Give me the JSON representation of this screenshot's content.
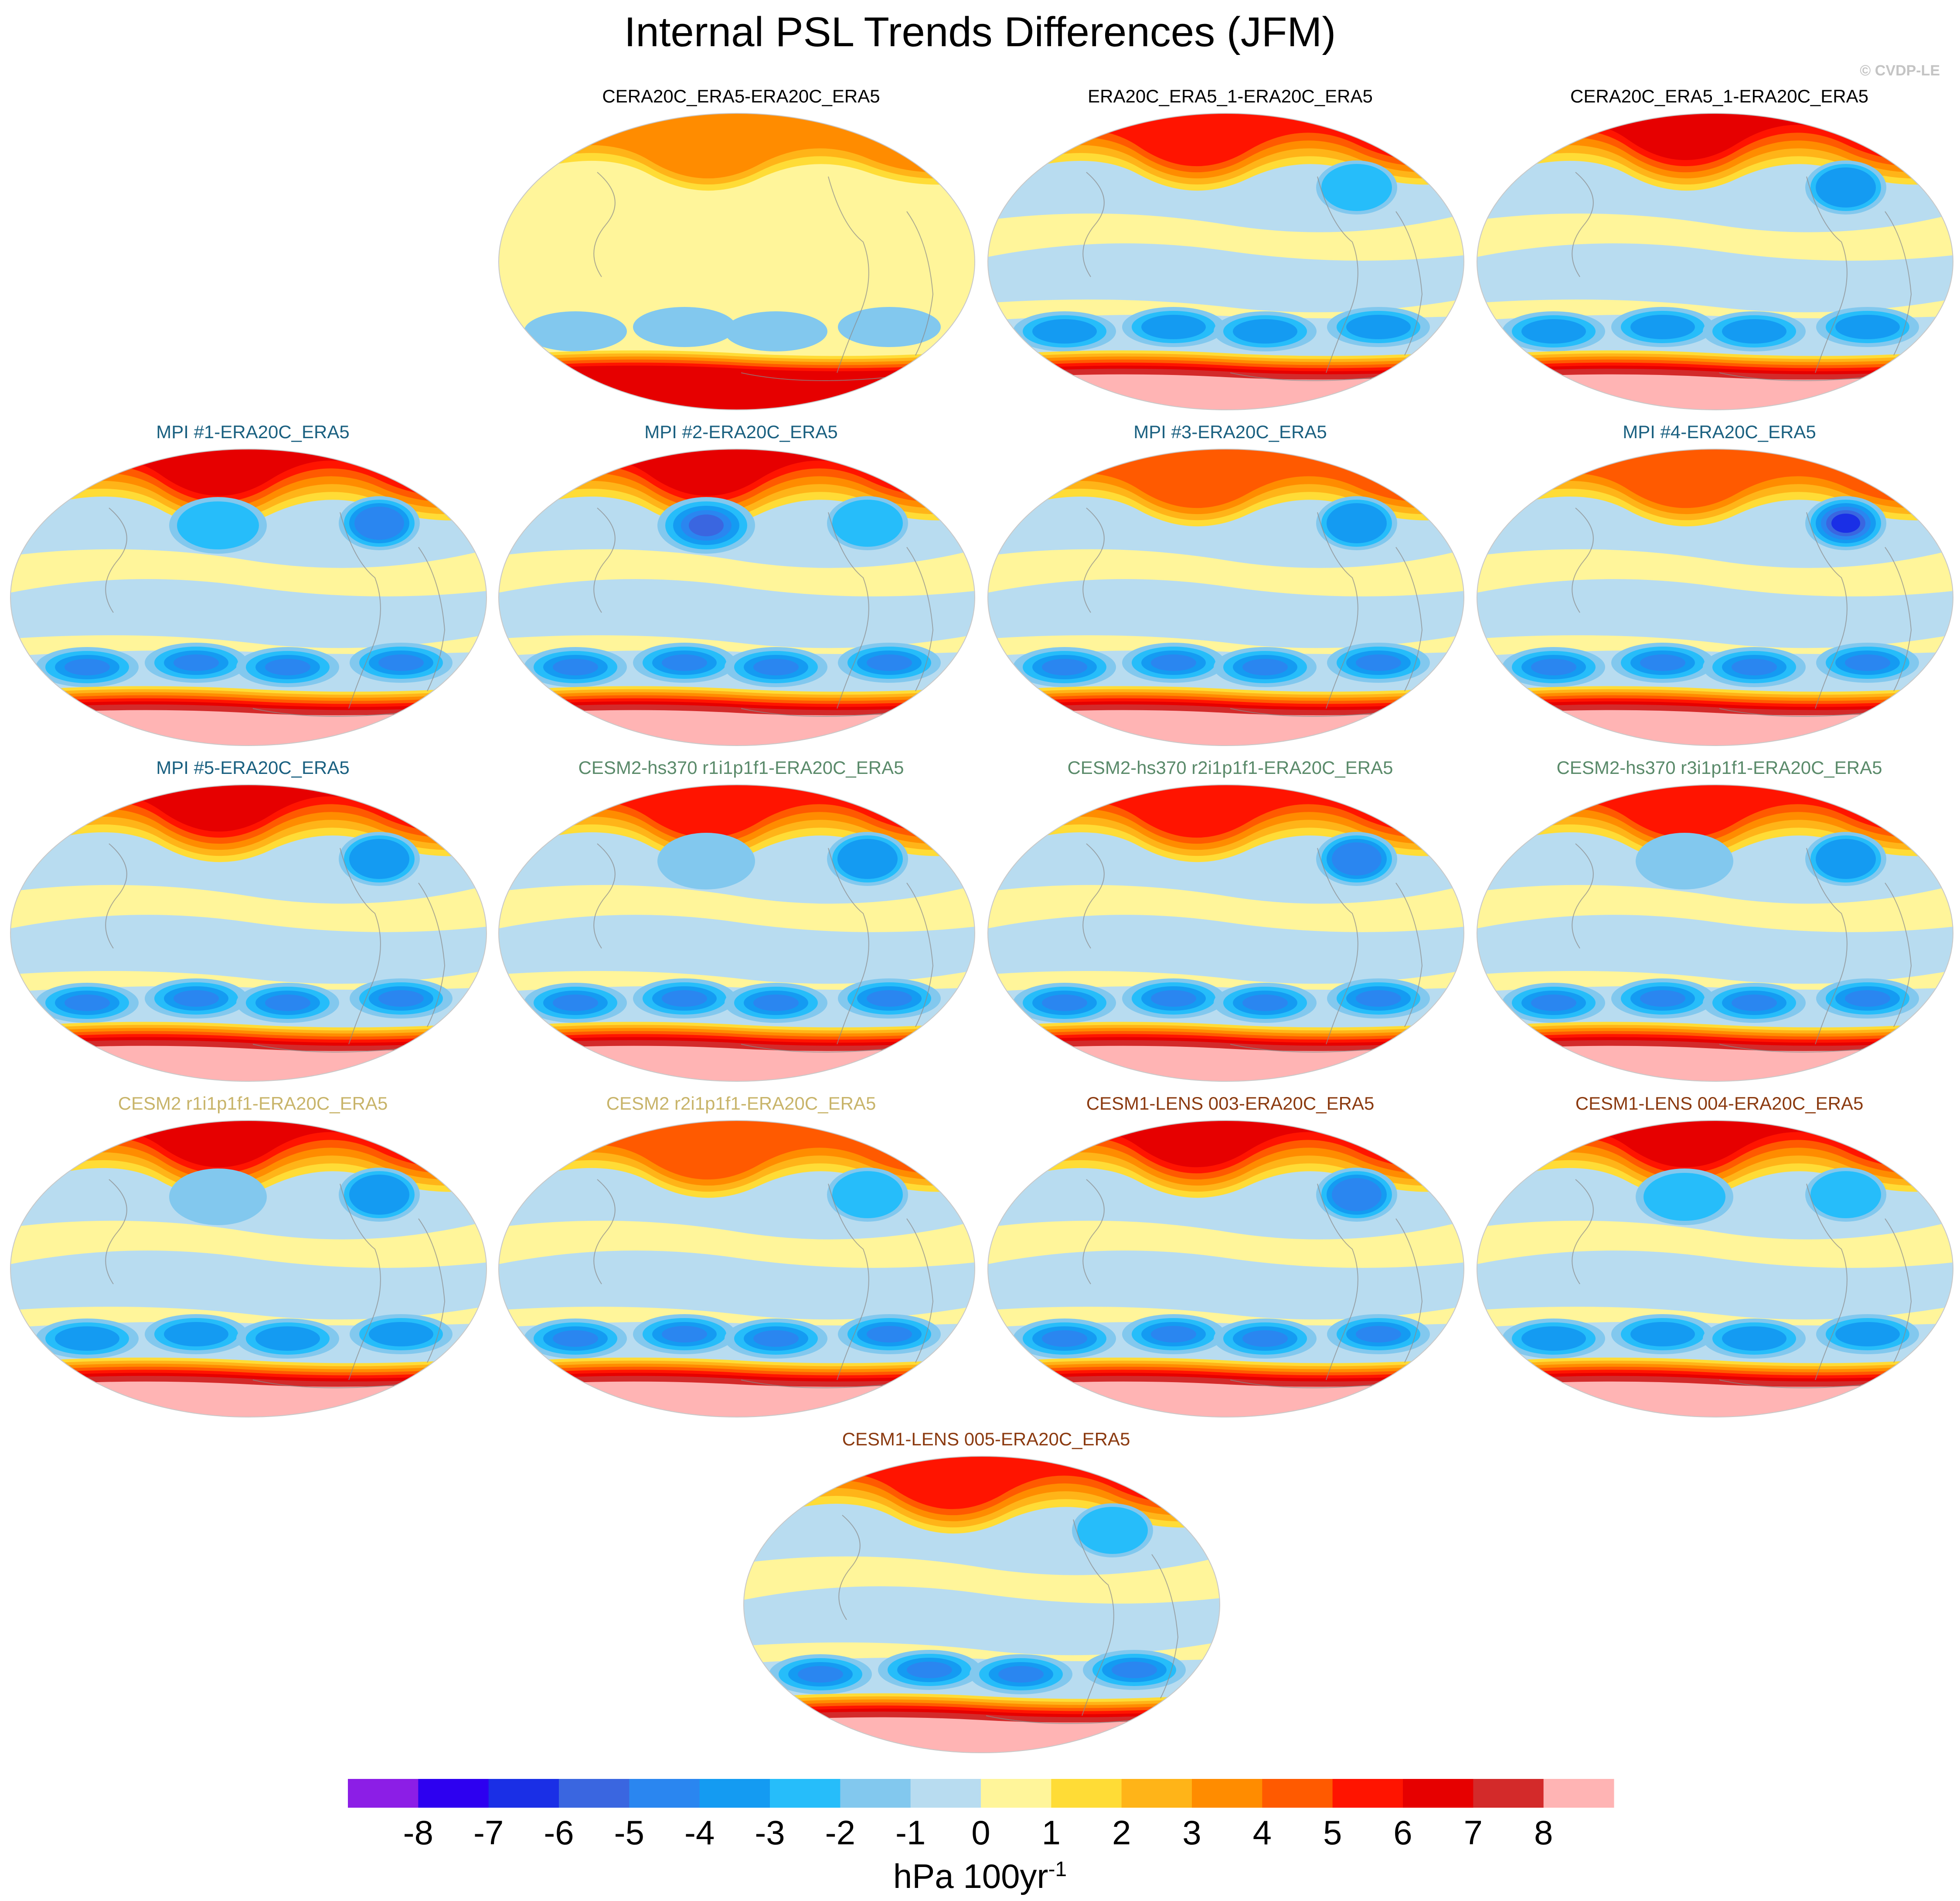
{
  "title": "Internal PSL Trends Differences (JFM)",
  "copyright": "© CVDP-LE",
  "panels": [
    {
      "label": "CERA20C_ERA5-ERA20C_ERA5",
      "label_color": "#000000",
      "row": 0,
      "col": 1,
      "north_intensity": 3,
      "south_ring_intensity": 6,
      "antarctic_intensity": 6,
      "south_lows": 1,
      "pacific_low": 0,
      "atlantic_low": 0,
      "fill": "yellow"
    },
    {
      "label": "ERA20C_ERA5_1-ERA20C_ERA5",
      "label_color": "#000000",
      "row": 0,
      "col": 2,
      "north_intensity": 5,
      "south_ring_intensity": 7,
      "antarctic_intensity": 8,
      "south_lows": 3,
      "pacific_low": 0,
      "atlantic_low": 2,
      "fill": "blue"
    },
    {
      "label": "CERA20C_ERA5_1-ERA20C_ERA5",
      "label_color": "#000000",
      "row": 0,
      "col": 3,
      "north_intensity": 6,
      "south_ring_intensity": 7,
      "antarctic_intensity": 8,
      "south_lows": 3,
      "pacific_low": 0,
      "atlantic_low": 3,
      "fill": "blue"
    },
    {
      "label": "MPI #1-ERA20C_ERA5",
      "label_color": "#1a6080",
      "row": 1,
      "col": 0,
      "north_intensity": 6,
      "south_ring_intensity": 7,
      "antarctic_intensity": 8,
      "south_lows": 4,
      "pacific_low": 2,
      "atlantic_low": 4,
      "fill": "blue"
    },
    {
      "label": "MPI #2-ERA20C_ERA5",
      "label_color": "#1a6080",
      "row": 1,
      "col": 1,
      "north_intensity": 6,
      "south_ring_intensity": 7,
      "antarctic_intensity": 8,
      "south_lows": 4,
      "pacific_low": 5,
      "atlantic_low": 2,
      "fill": "blue"
    },
    {
      "label": "MPI #3-ERA20C_ERA5",
      "label_color": "#1a6080",
      "row": 1,
      "col": 2,
      "north_intensity": 4,
      "south_ring_intensity": 7,
      "antarctic_intensity": 8,
      "south_lows": 4,
      "pacific_low": 0,
      "atlantic_low": 3,
      "fill": "blue"
    },
    {
      "label": "MPI #4-ERA20C_ERA5",
      "label_color": "#1a6080",
      "row": 1,
      "col": 3,
      "north_intensity": 4,
      "south_ring_intensity": 7,
      "antarctic_intensity": 8,
      "south_lows": 4,
      "pacific_low": 0,
      "atlantic_low": 6,
      "fill": "blue"
    },
    {
      "label": "MPI #5-ERA20C_ERA5",
      "label_color": "#1a6080",
      "row": 2,
      "col": 0,
      "north_intensity": 6,
      "south_ring_intensity": 7,
      "antarctic_intensity": 8,
      "south_lows": 4,
      "pacific_low": 0,
      "atlantic_low": 3,
      "fill": "blue"
    },
    {
      "label": "CESM2-hs370 r1i1p1f1-ERA20C_ERA5",
      "label_color": "#5a8a6a",
      "row": 2,
      "col": 1,
      "north_intensity": 5,
      "south_ring_intensity": 7,
      "antarctic_intensity": 8,
      "south_lows": 4,
      "pacific_low": 1,
      "atlantic_low": 3,
      "fill": "blue"
    },
    {
      "label": "CESM2-hs370 r2i1p1f1-ERA20C_ERA5",
      "label_color": "#5a8a6a",
      "row": 2,
      "col": 2,
      "north_intensity": 5,
      "south_ring_intensity": 7,
      "antarctic_intensity": 8,
      "south_lows": 4,
      "pacific_low": 0,
      "atlantic_low": 4,
      "fill": "blue"
    },
    {
      "label": "CESM2-hs370 r3i1p1f1-ERA20C_ERA5",
      "label_color": "#5a8a6a",
      "row": 2,
      "col": 3,
      "north_intensity": 5,
      "south_ring_intensity": 7,
      "antarctic_intensity": 8,
      "south_lows": 4,
      "pacific_low": 1,
      "atlantic_low": 3,
      "fill": "blue"
    },
    {
      "label": "CESM2 r1i1p1f1-ERA20C_ERA5",
      "label_color": "#c8b46a",
      "row": 3,
      "col": 0,
      "north_intensity": 6,
      "south_ring_intensity": 7,
      "antarctic_intensity": 8,
      "south_lows": 3,
      "pacific_low": 1,
      "atlantic_low": 3,
      "fill": "blue"
    },
    {
      "label": "CESM2 r2i1p1f1-ERA20C_ERA5",
      "label_color": "#c8b46a",
      "row": 3,
      "col": 1,
      "north_intensity": 4,
      "south_ring_intensity": 7,
      "antarctic_intensity": 8,
      "south_lows": 4,
      "pacific_low": 0,
      "atlantic_low": 2,
      "fill": "blue"
    },
    {
      "label": "CESM1-LENS 003-ERA20C_ERA5",
      "label_color": "#8b3a10",
      "row": 3,
      "col": 2,
      "north_intensity": 6,
      "south_ring_intensity": 7,
      "antarctic_intensity": 8,
      "south_lows": 4,
      "pacific_low": 0,
      "atlantic_low": 4,
      "fill": "blue"
    },
    {
      "label": "CESM1-LENS 004-ERA20C_ERA5",
      "label_color": "#8b3a10",
      "row": 3,
      "col": 3,
      "north_intensity": 6,
      "south_ring_intensity": 7,
      "antarctic_intensity": 8,
      "south_lows": 3,
      "pacific_low": 2,
      "atlantic_low": 2,
      "fill": "blue"
    },
    {
      "label": "CESM1-LENS 005-ERA20C_ERA5",
      "label_color": "#8b3a10",
      "row": 4,
      "col": 1.5,
      "north_intensity": 5,
      "south_ring_intensity": 7,
      "antarctic_intensity": 8,
      "south_lows": 4,
      "pacific_low": 0,
      "atlantic_low": 2,
      "fill": "blue"
    }
  ],
  "colorbar": {
    "levels": [
      "-8",
      "-7",
      "-6",
      "-5",
      "-4",
      "-3",
      "-2",
      "-1",
      "0",
      "1",
      "2",
      "3",
      "4",
      "5",
      "6",
      "7",
      "8"
    ],
    "colors": [
      "#8c1ee6",
      "#2d00f0",
      "#1a2fe6",
      "#3a66e0",
      "#2a86f0",
      "#149bf2",
      "#26bdfa",
      "#82c8ee",
      "#b8dcf0",
      "#fff59a",
      "#ffdc36",
      "#ffb418",
      "#ff8c00",
      "#ff5a00",
      "#ff1400",
      "#e60000",
      "#d32a2a",
      "#ffb4b4"
    ],
    "unit": "hPa 100yr",
    "unit_exponent": "-1"
  }
}
